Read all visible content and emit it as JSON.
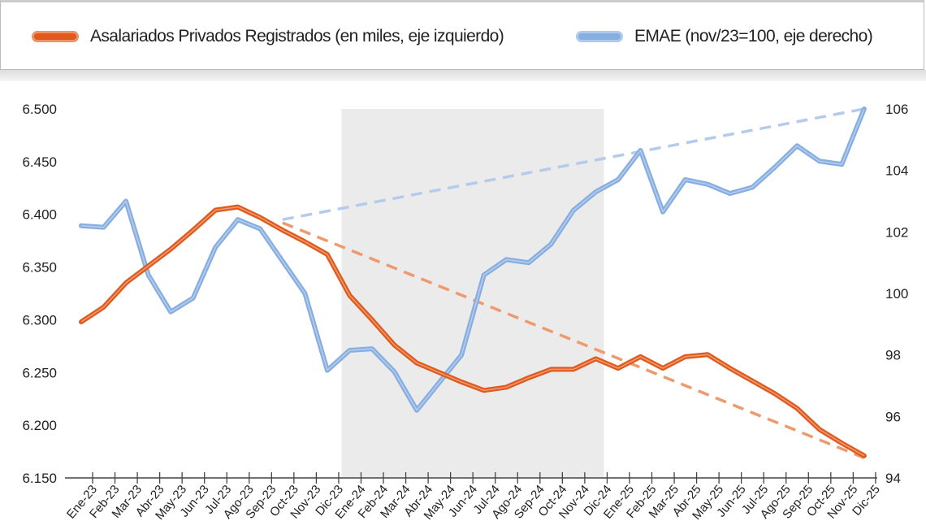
{
  "chart_data": {
    "type": "line",
    "title": "",
    "legend_position": "top",
    "categories": [
      "Ene-23",
      "Feb-23",
      "Mar-23",
      "Abr-23",
      "May-23",
      "Jun-23",
      "Jul-23",
      "Ago-23",
      "Sep-23",
      "Oct-23",
      "Nov-23",
      "Dic-23",
      "Ene-24",
      "Feb-24",
      "Mar-24",
      "Abr-24",
      "May-24",
      "Jun-24",
      "Jul-24",
      "Ago-24",
      "Sep-24",
      "Oct-24",
      "Nov-24",
      "Dic-24",
      "Ene-25",
      "Feb-25",
      "Mar-25",
      "Abr-25",
      "May-25",
      "Jun-25",
      "Jul-25",
      "Ago-25",
      "Sep-25",
      "Oct-25",
      "Nov-25",
      "Dic-25"
    ],
    "y_left": {
      "range": [
        6.15,
        6.5
      ],
      "ticks": [
        "6.150",
        "6.200",
        "6.250",
        "6.300",
        "6.350",
        "6.400",
        "6.450",
        "6.500"
      ]
    },
    "y_right": {
      "range": [
        94,
        106
      ],
      "ticks": [
        "94",
        "96",
        "98",
        "100",
        "102",
        "104",
        "106"
      ]
    },
    "shaded_period": [
      "Ene-24",
      "Dic-24"
    ],
    "series": [
      {
        "name": "Asalariados Privados Registrados (en miles, eje izquierdo)",
        "axis": "left",
        "color": "#e05a1c",
        "values": [
          6.298,
          6.312,
          6.335,
          6.351,
          6.367,
          6.385,
          6.404,
          6.407,
          6.397,
          6.385,
          6.374,
          6.362,
          6.323,
          6.3,
          6.276,
          6.259,
          6.25,
          6.241,
          6.233,
          6.236,
          6.245,
          6.253,
          6.253,
          6.263,
          6.254,
          6.265,
          6.254,
          6.265,
          6.267,
          6.254,
          6.242,
          6.23,
          6.216,
          6.196,
          6.183,
          6.171
        ],
        "trend": {
          "from": "Oct-23",
          "to": "Dic-25",
          "start": 6.392,
          "end": 6.169,
          "color": "#ee9a6e"
        }
      },
      {
        "name": "EMAE (nov/23=100, eje derecho)",
        "axis": "right",
        "color": "#87aee0",
        "values": [
          102.2,
          102.15,
          103.0,
          100.6,
          99.4,
          99.85,
          101.5,
          102.4,
          102.1,
          101.05,
          100.0,
          97.5,
          98.15,
          98.2,
          97.45,
          96.2,
          97.1,
          98.0,
          100.6,
          101.1,
          101.0,
          101.6,
          102.7,
          103.3,
          103.7,
          104.65,
          102.65,
          103.7,
          103.55,
          103.25,
          103.45,
          104.1,
          104.8,
          104.3,
          104.2,
          106.0
        ],
        "trend": {
          "from": "Oct-23",
          "to": "Dic-25",
          "start": 102.4,
          "end": 106.0,
          "color": "#b5cbeb"
        }
      }
    ]
  }
}
